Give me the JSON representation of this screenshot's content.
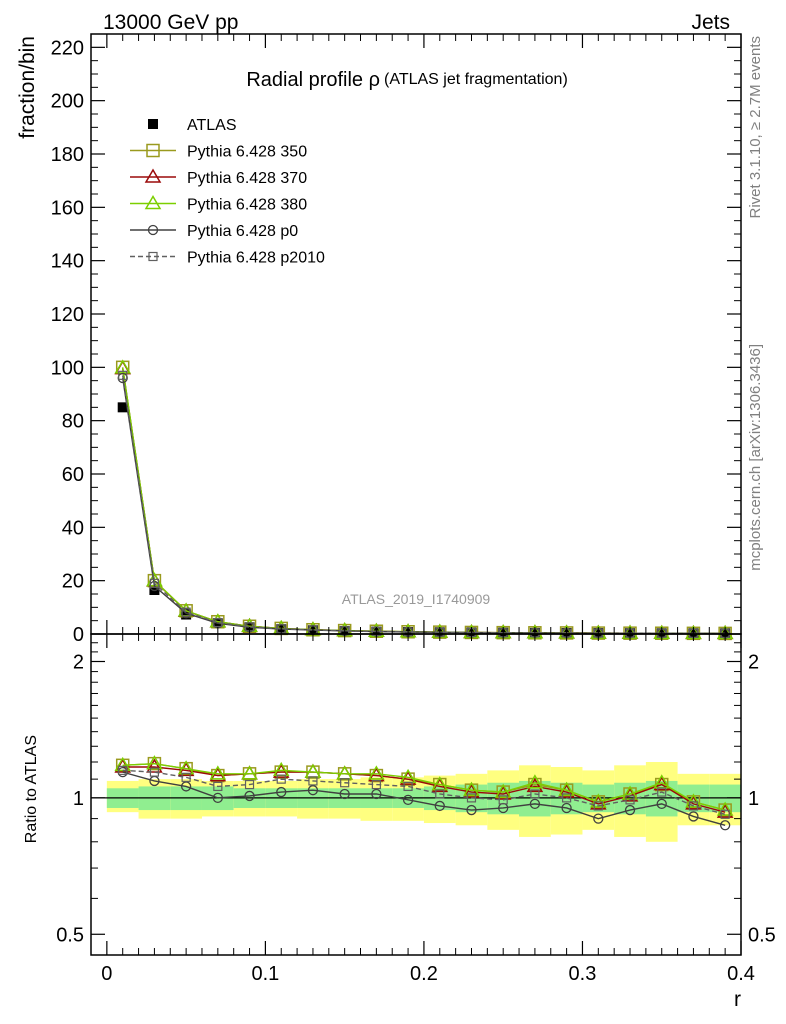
{
  "header": {
    "left": "13000 GeV pp",
    "right": "Jets"
  },
  "side_labels": {
    "rivet": "Rivet 3.1.10, ≥ 2.7M events",
    "mcplots": "mcplots.cern.ch [arXiv:1306.3436]"
  },
  "colors": {
    "atlas": "#000000",
    "p350": "#9a9a1e",
    "p370": "#9b0a0a",
    "p380": "#7ccf00",
    "p0": "#404040",
    "p2010": "#606060",
    "band_inner": "#90ee90",
    "band_outer": "#ffff80"
  },
  "chart_data": [
    {
      "type": "line",
      "title": "Radial profile ρ",
      "subtitle": "(ATLAS jet fragmentation)",
      "ylabel": "fraction/bin",
      "xlabel": "",
      "watermark": "ATLAS_2019_I1740909",
      "xlim": [
        -0.01,
        0.4
      ],
      "ylim": [
        0,
        225
      ],
      "ytick_labels": [
        "0",
        "20",
        "40",
        "60",
        "80",
        "100",
        "120",
        "140",
        "160",
        "180",
        "200",
        "220"
      ],
      "grid": false,
      "legend_position": "top-left",
      "x": [
        0.01,
        0.03,
        0.05,
        0.07,
        0.09,
        0.11,
        0.13,
        0.15,
        0.17,
        0.19,
        0.21,
        0.23,
        0.25,
        0.27,
        0.29,
        0.31,
        0.33,
        0.35,
        0.37,
        0.39
      ],
      "series": [
        {
          "name": "ATLAS",
          "key": "atlas",
          "style": "data",
          "values": [
            85,
            16.5,
            7.3,
            4.0,
            2.5,
            1.8,
            1.4,
            1.1,
            0.9,
            0.75,
            0.65,
            0.55,
            0.48,
            0.42,
            0.38,
            0.34,
            0.3,
            0.27,
            0.25,
            0.23
          ]
        },
        {
          "name": "Pythia 6.428 350",
          "key": "p350",
          "marker": "square",
          "values": [
            100,
            20,
            8.7,
            4.6,
            2.9,
            2.1,
            1.6,
            1.28,
            1.03,
            0.84,
            0.7,
            0.58,
            0.5,
            0.45,
            0.4,
            0.34,
            0.31,
            0.29,
            0.25,
            0.22
          ]
        },
        {
          "name": "Pythia 6.428 370",
          "key": "p370",
          "marker": "triangle",
          "values": [
            99.5,
            19.9,
            8.6,
            4.55,
            2.88,
            2.08,
            1.59,
            1.27,
            1.02,
            0.83,
            0.69,
            0.57,
            0.5,
            0.45,
            0.4,
            0.34,
            0.31,
            0.29,
            0.25,
            0.22
          ]
        },
        {
          "name": "Pythia 6.428 380",
          "key": "p380",
          "marker": "triangle",
          "values": [
            99.8,
            20,
            8.65,
            4.6,
            2.9,
            2.1,
            1.6,
            1.28,
            1.03,
            0.84,
            0.7,
            0.58,
            0.5,
            0.45,
            0.4,
            0.34,
            0.31,
            0.29,
            0.25,
            0.22
          ]
        },
        {
          "name": "Pythia 6.428 p0",
          "key": "p0",
          "marker": "circle",
          "values": [
            96,
            18,
            7.8,
            4.0,
            2.5,
            1.87,
            1.5,
            1.13,
            0.92,
            0.75,
            0.62,
            0.52,
            0.46,
            0.41,
            0.36,
            0.31,
            0.28,
            0.26,
            0.23,
            0.2
          ]
        },
        {
          "name": "Pythia 6.428 p2010",
          "key": "p2010",
          "marker": "square-small",
          "dashed": true,
          "values": [
            97,
            19,
            8.2,
            4.3,
            2.7,
            1.97,
            1.52,
            1.2,
            0.97,
            0.8,
            0.66,
            0.55,
            0.48,
            0.43,
            0.38,
            0.33,
            0.3,
            0.28,
            0.24,
            0.21
          ]
        }
      ]
    },
    {
      "type": "line",
      "ylabel": "Ratio to ATLAS",
      "xlabel": "r",
      "xlim": [
        -0.01,
        0.4
      ],
      "ylim": [
        0.45,
        2.3
      ],
      "log_y": true,
      "ytick_labels": [
        "0.5",
        "1",
        "2"
      ],
      "xtick_labels": [
        "0",
        "0.1",
        "0.2",
        "0.3",
        "0.4"
      ],
      "band_edges": [
        0.0,
        0.02,
        0.04,
        0.06,
        0.08,
        0.1,
        0.12,
        0.14,
        0.16,
        0.18,
        0.2,
        0.22,
        0.24,
        0.26,
        0.28,
        0.3,
        0.32,
        0.34,
        0.36,
        0.38,
        0.4
      ],
      "band_inner": [
        [
          0.95,
          1.05
        ],
        [
          0.94,
          1.06
        ],
        [
          0.94,
          1.06
        ],
        [
          0.94,
          1.06
        ],
        [
          0.95,
          1.05
        ],
        [
          0.95,
          1.05
        ],
        [
          0.95,
          1.05
        ],
        [
          0.95,
          1.05
        ],
        [
          0.95,
          1.05
        ],
        [
          0.95,
          1.05
        ],
        [
          0.94,
          1.06
        ],
        [
          0.93,
          1.07
        ],
        [
          0.92,
          1.08
        ],
        [
          0.91,
          1.09
        ],
        [
          0.92,
          1.08
        ],
        [
          0.93,
          1.07
        ],
        [
          0.92,
          1.08
        ],
        [
          0.91,
          1.09
        ],
        [
          0.93,
          1.07
        ],
        [
          0.93,
          1.07
        ]
      ],
      "band_outer": [
        [
          0.93,
          1.09
        ],
        [
          0.9,
          1.1
        ],
        [
          0.9,
          1.1
        ],
        [
          0.91,
          1.09
        ],
        [
          0.91,
          1.09
        ],
        [
          0.91,
          1.09
        ],
        [
          0.9,
          1.1
        ],
        [
          0.9,
          1.1
        ],
        [
          0.89,
          1.11
        ],
        [
          0.89,
          1.11
        ],
        [
          0.88,
          1.12
        ],
        [
          0.87,
          1.13
        ],
        [
          0.85,
          1.15
        ],
        [
          0.82,
          1.18
        ],
        [
          0.83,
          1.17
        ],
        [
          0.85,
          1.15
        ],
        [
          0.82,
          1.18
        ],
        [
          0.8,
          1.2
        ],
        [
          0.87,
          1.13
        ],
        [
          0.87,
          1.13
        ]
      ],
      "x": [
        0.01,
        0.03,
        0.05,
        0.07,
        0.09,
        0.11,
        0.13,
        0.15,
        0.17,
        0.19,
        0.21,
        0.23,
        0.25,
        0.27,
        0.29,
        0.31,
        0.33,
        0.35,
        0.37,
        0.39
      ],
      "series": [
        {
          "name": "Pythia 6.428 350",
          "key": "p350",
          "marker": "square",
          "values": [
            1.18,
            1.19,
            1.16,
            1.12,
            1.13,
            1.14,
            1.14,
            1.13,
            1.12,
            1.1,
            1.07,
            1.04,
            1.03,
            1.07,
            1.04,
            0.98,
            1.02,
            1.07,
            0.98,
            0.94
          ]
        },
        {
          "name": "Pythia 6.428 370",
          "key": "p370",
          "marker": "triangle",
          "values": [
            1.17,
            1.17,
            1.15,
            1.12,
            1.13,
            1.14,
            1.14,
            1.13,
            1.12,
            1.1,
            1.06,
            1.03,
            1.02,
            1.06,
            1.03,
            0.97,
            1.01,
            1.07,
            0.97,
            0.93
          ]
        },
        {
          "name": "Pythia 6.428 380",
          "key": "p380",
          "marker": "triangle",
          "values": [
            1.18,
            1.19,
            1.16,
            1.13,
            1.13,
            1.15,
            1.14,
            1.13,
            1.13,
            1.11,
            1.07,
            1.04,
            1.03,
            1.08,
            1.04,
            0.98,
            1.02,
            1.08,
            0.98,
            0.94
          ]
        },
        {
          "name": "Pythia 6.428 p0",
          "key": "p0",
          "marker": "circle",
          "values": [
            1.14,
            1.09,
            1.06,
            1.0,
            1.01,
            1.03,
            1.04,
            1.02,
            1.02,
            0.99,
            0.96,
            0.94,
            0.95,
            0.97,
            0.95,
            0.9,
            0.94,
            0.97,
            0.91,
            0.87
          ]
        },
        {
          "name": "Pythia 6.428 p2010",
          "key": "p2010",
          "marker": "square-small",
          "dashed": true,
          "values": [
            1.15,
            1.14,
            1.11,
            1.06,
            1.07,
            1.1,
            1.09,
            1.08,
            1.07,
            1.06,
            1.02,
            1.0,
            0.99,
            1.02,
            1.0,
            0.96,
            0.99,
            1.03,
            0.96,
            0.92
          ]
        }
      ]
    }
  ]
}
